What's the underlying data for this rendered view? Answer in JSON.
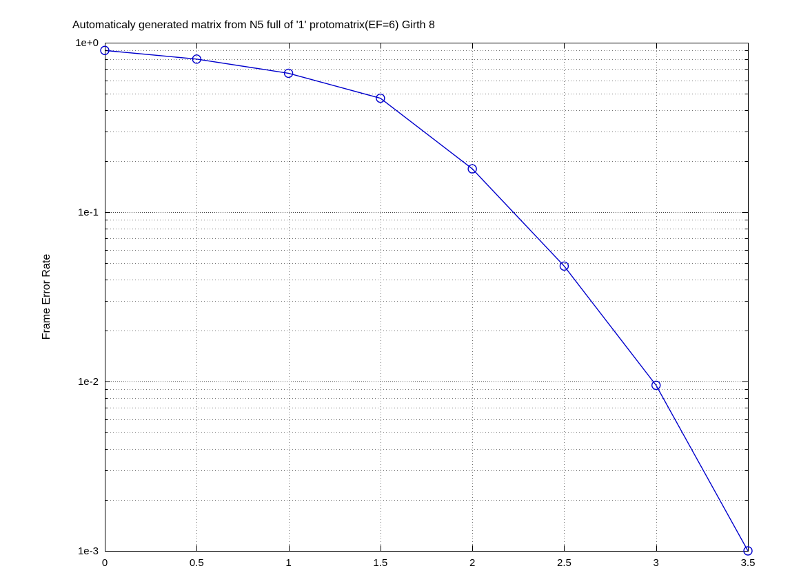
{
  "chart_data": {
    "type": "line",
    "title": "Automaticaly generated matrix from N5 full of '1' protomatrix(EF=6) Girth 8",
    "xlabel": "",
    "ylabel": "Frame Error Rate",
    "x": [
      0,
      0.5,
      1,
      1.5,
      2,
      2.5,
      3,
      3.5
    ],
    "series": [
      {
        "name": "Frame Error Rate",
        "values": [
          0.9,
          0.8,
          0.66,
          0.47,
          0.18,
          0.048,
          0.0095,
          0.001
        ]
      }
    ],
    "xlim": [
      0,
      3.5
    ],
    "ylim": [
      0.001,
      1
    ],
    "yscale": "log",
    "xticks": [
      0,
      0.5,
      1,
      1.5,
      2,
      2.5,
      3,
      3.5
    ],
    "xtick_labels": [
      "0",
      "0.5",
      "1",
      "1.5",
      "2",
      "2.5",
      "3",
      "3.5"
    ],
    "yticks": [
      1,
      0.1,
      0.01,
      0.001
    ],
    "ytick_labels": [
      "1e+0",
      "1e-1",
      "1e-2",
      "1e-3"
    ],
    "grid": true,
    "minor_grid": true,
    "legend": null,
    "line_color": "#0000cc",
    "marker": "circle"
  }
}
